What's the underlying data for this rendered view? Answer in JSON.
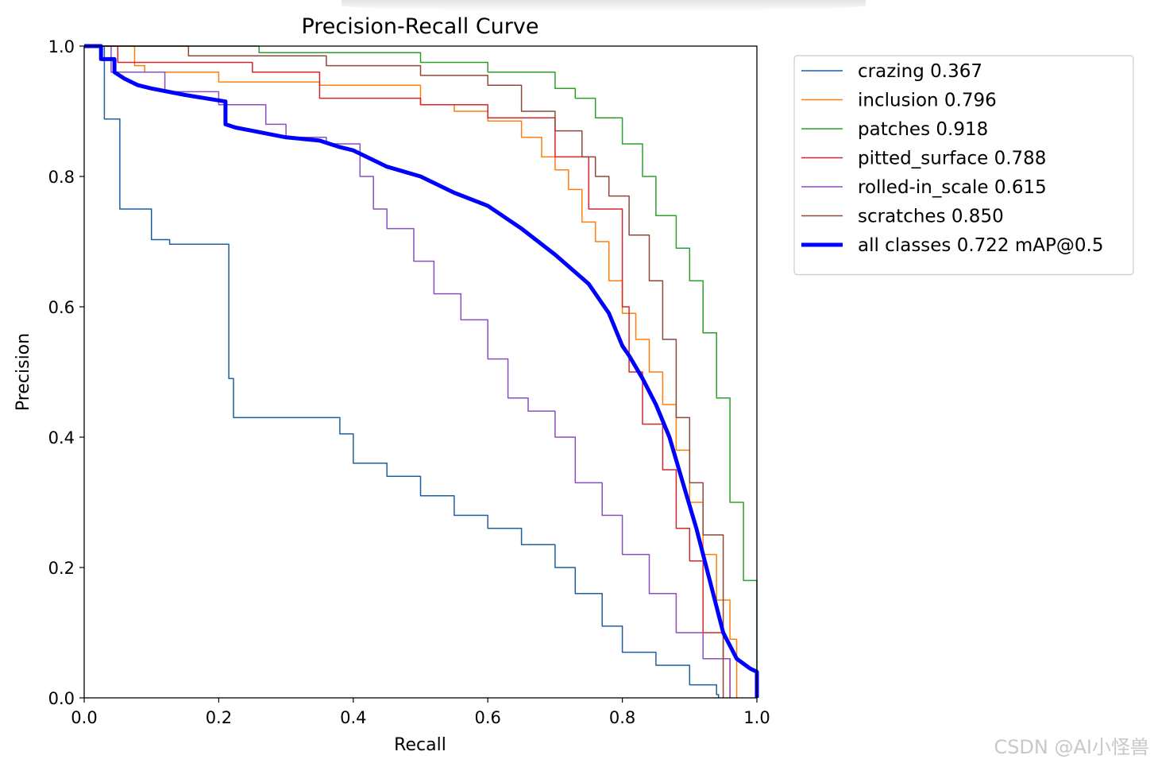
{
  "chart_data": {
    "type": "line",
    "title": "Precision-Recall Curve",
    "xlabel": "Recall",
    "ylabel": "Precision",
    "xlim": [
      0,
      1
    ],
    "ylim": [
      0,
      1
    ],
    "xticks": [
      "0.0",
      "0.2",
      "0.4",
      "0.6",
      "0.8",
      "1.0"
    ],
    "yticks": [
      "0.0",
      "0.2",
      "0.4",
      "0.6",
      "0.8",
      "1.0"
    ],
    "legend_position": "outside-upper-right",
    "series": [
      {
        "name": "crazing 0.367",
        "color": "#1f5fa0",
        "width": "thin",
        "x": [
          0,
          0.03,
          0.03,
          0.053,
          0.053,
          0.1,
          0.1,
          0.127,
          0.127,
          0.215,
          0.215,
          0.222,
          0.222,
          0.38,
          0.38,
          0.4,
          0.4,
          0.45,
          0.45,
          0.5,
          0.5,
          0.55,
          0.55,
          0.6,
          0.6,
          0.65,
          0.65,
          0.7,
          0.7,
          0.73,
          0.73,
          0.77,
          0.77,
          0.8,
          0.8,
          0.85,
          0.85,
          0.9,
          0.9,
          0.94,
          0.94,
          0.943,
          0.943
        ],
        "y": [
          1,
          1,
          0.888,
          0.888,
          0.75,
          0.75,
          0.703,
          0.703,
          0.696,
          0.696,
          0.49,
          0.49,
          0.43,
          0.43,
          0.405,
          0.405,
          0.36,
          0.36,
          0.34,
          0.34,
          0.31,
          0.31,
          0.28,
          0.28,
          0.26,
          0.26,
          0.235,
          0.235,
          0.2,
          0.2,
          0.16,
          0.16,
          0.11,
          0.11,
          0.07,
          0.07,
          0.05,
          0.05,
          0.02,
          0.02,
          0.005,
          0.005,
          0
        ]
      },
      {
        "name": "inclusion 0.796",
        "color": "#ff7f0e",
        "width": "thin",
        "x": [
          0,
          0.075,
          0.075,
          0.09,
          0.09,
          0.2,
          0.2,
          0.35,
          0.35,
          0.5,
          0.5,
          0.55,
          0.55,
          0.6,
          0.6,
          0.65,
          0.65,
          0.68,
          0.68,
          0.7,
          0.7,
          0.72,
          0.72,
          0.74,
          0.74,
          0.76,
          0.76,
          0.78,
          0.78,
          0.8,
          0.8,
          0.82,
          0.82,
          0.84,
          0.84,
          0.86,
          0.86,
          0.88,
          0.88,
          0.9,
          0.9,
          0.92,
          0.92,
          0.94,
          0.94,
          0.96,
          0.96,
          0.97,
          0.97
        ],
        "y": [
          1,
          1,
          0.97,
          0.97,
          0.96,
          0.96,
          0.945,
          0.945,
          0.94,
          0.94,
          0.91,
          0.91,
          0.9,
          0.9,
          0.885,
          0.885,
          0.86,
          0.86,
          0.83,
          0.83,
          0.81,
          0.81,
          0.78,
          0.78,
          0.73,
          0.73,
          0.7,
          0.7,
          0.64,
          0.64,
          0.59,
          0.59,
          0.55,
          0.55,
          0.5,
          0.5,
          0.45,
          0.45,
          0.38,
          0.38,
          0.3,
          0.3,
          0.22,
          0.22,
          0.15,
          0.15,
          0.09,
          0.09,
          0
        ]
      },
      {
        "name": "patches 0.918",
        "color": "#2ca02c",
        "width": "thin",
        "x": [
          0,
          0.26,
          0.26,
          0.5,
          0.5,
          0.6,
          0.6,
          0.7,
          0.7,
          0.73,
          0.73,
          0.76,
          0.76,
          0.8,
          0.8,
          0.83,
          0.83,
          0.85,
          0.85,
          0.88,
          0.88,
          0.9,
          0.9,
          0.92,
          0.92,
          0.94,
          0.94,
          0.96,
          0.96,
          0.98,
          0.98,
          1.0,
          1.0
        ],
        "y": [
          1,
          1,
          0.99,
          0.99,
          0.975,
          0.975,
          0.96,
          0.96,
          0.935,
          0.935,
          0.92,
          0.92,
          0.89,
          0.89,
          0.85,
          0.85,
          0.8,
          0.8,
          0.74,
          0.74,
          0.69,
          0.69,
          0.64,
          0.64,
          0.56,
          0.56,
          0.46,
          0.46,
          0.3,
          0.3,
          0.18,
          0.18,
          0
        ]
      },
      {
        "name": "pitted_surface 0.788",
        "color": "#d62728",
        "width": "thin",
        "x": [
          0,
          0.05,
          0.05,
          0.25,
          0.25,
          0.35,
          0.35,
          0.5,
          0.5,
          0.6,
          0.6,
          0.7,
          0.7,
          0.75,
          0.75,
          0.8,
          0.8,
          0.81,
          0.81,
          0.83,
          0.83,
          0.86,
          0.86,
          0.88,
          0.88,
          0.9,
          0.9,
          0.92,
          0.92,
          0.95,
          0.95,
          0.96,
          0.96
        ],
        "y": [
          1,
          1,
          0.975,
          0.975,
          0.96,
          0.96,
          0.92,
          0.92,
          0.91,
          0.91,
          0.89,
          0.89,
          0.83,
          0.83,
          0.75,
          0.75,
          0.6,
          0.6,
          0.5,
          0.5,
          0.42,
          0.42,
          0.35,
          0.35,
          0.26,
          0.26,
          0.21,
          0.21,
          0.1,
          0.1,
          0.06,
          0.06,
          0
        ]
      },
      {
        "name": "rolled-in_scale 0.615",
        "color": "#8a4fbf",
        "width": "thin",
        "x": [
          0,
          0.04,
          0.04,
          0.12,
          0.12,
          0.2,
          0.2,
          0.27,
          0.27,
          0.3,
          0.3,
          0.36,
          0.36,
          0.41,
          0.41,
          0.43,
          0.43,
          0.45,
          0.45,
          0.49,
          0.49,
          0.52,
          0.52,
          0.56,
          0.56,
          0.6,
          0.6,
          0.63,
          0.63,
          0.66,
          0.66,
          0.7,
          0.7,
          0.73,
          0.73,
          0.77,
          0.77,
          0.8,
          0.8,
          0.84,
          0.84,
          0.88,
          0.88,
          0.92,
          0.92,
          0.96,
          0.96
        ],
        "y": [
          1,
          1,
          0.96,
          0.96,
          0.93,
          0.93,
          0.91,
          0.91,
          0.88,
          0.88,
          0.86,
          0.86,
          0.85,
          0.85,
          0.8,
          0.8,
          0.75,
          0.75,
          0.72,
          0.72,
          0.67,
          0.67,
          0.62,
          0.62,
          0.58,
          0.58,
          0.52,
          0.52,
          0.46,
          0.46,
          0.44,
          0.44,
          0.4,
          0.4,
          0.33,
          0.33,
          0.28,
          0.28,
          0.22,
          0.22,
          0.16,
          0.16,
          0.1,
          0.1,
          0.06,
          0.06,
          0
        ]
      },
      {
        "name": "scratches 0.850",
        "color": "#8c4a3a",
        "width": "thin",
        "x": [
          0,
          0.155,
          0.155,
          0.36,
          0.36,
          0.5,
          0.5,
          0.6,
          0.6,
          0.65,
          0.65,
          0.7,
          0.7,
          0.74,
          0.74,
          0.76,
          0.76,
          0.78,
          0.78,
          0.81,
          0.81,
          0.84,
          0.84,
          0.86,
          0.86,
          0.88,
          0.88,
          0.9,
          0.9,
          0.92,
          0.92,
          0.95,
          0.95
        ],
        "y": [
          1,
          1,
          0.985,
          0.985,
          0.97,
          0.97,
          0.955,
          0.955,
          0.94,
          0.94,
          0.9,
          0.9,
          0.87,
          0.87,
          0.83,
          0.83,
          0.8,
          0.8,
          0.77,
          0.77,
          0.71,
          0.71,
          0.64,
          0.64,
          0.55,
          0.55,
          0.43,
          0.43,
          0.33,
          0.33,
          0.25,
          0.25,
          0
        ]
      },
      {
        "name": "all classes 0.722 mAP@0.5",
        "color": "#0000ff",
        "width": "thick",
        "x": [
          0,
          0.025,
          0.025,
          0.045,
          0.045,
          0.06,
          0.08,
          0.1,
          0.15,
          0.21,
          0.21,
          0.225,
          0.25,
          0.3,
          0.35,
          0.38,
          0.4,
          0.43,
          0.45,
          0.5,
          0.55,
          0.6,
          0.65,
          0.7,
          0.75,
          0.78,
          0.8,
          0.81,
          0.83,
          0.85,
          0.87,
          0.89,
          0.91,
          0.93,
          0.95,
          0.97,
          0.99,
          1.0,
          1.0
        ],
        "y": [
          1,
          1,
          0.98,
          0.98,
          0.96,
          0.95,
          0.94,
          0.935,
          0.925,
          0.915,
          0.88,
          0.875,
          0.87,
          0.86,
          0.855,
          0.845,
          0.84,
          0.825,
          0.815,
          0.8,
          0.775,
          0.755,
          0.72,
          0.68,
          0.635,
          0.59,
          0.54,
          0.525,
          0.49,
          0.45,
          0.4,
          0.33,
          0.26,
          0.18,
          0.1,
          0.06,
          0.045,
          0.04,
          0
        ]
      }
    ]
  },
  "watermark": "CSDN @AI小怪兽"
}
